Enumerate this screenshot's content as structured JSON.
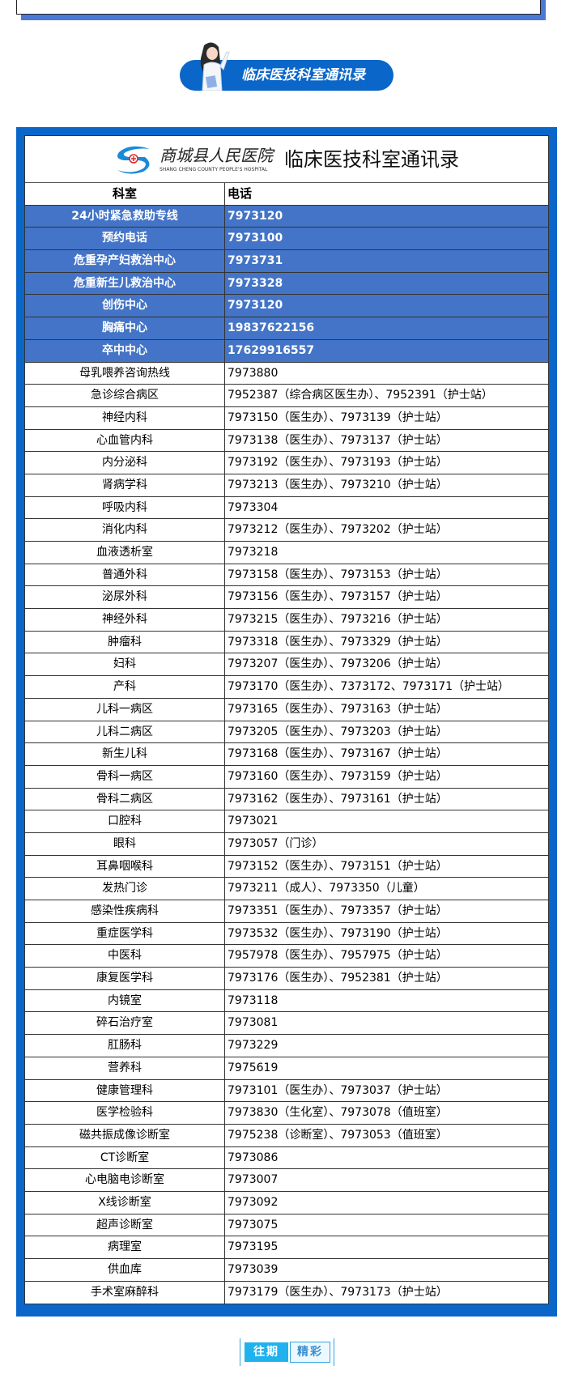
{
  "badge": {
    "title": "临床医技科室通讯录"
  },
  "table": {
    "logo_cn": "商城县人民医院",
    "logo_en": "SHANG CHENG COUNTY PEOPLE'S HOSPITAL",
    "title": "临床医技科室通讯录",
    "headers": [
      "科室",
      "电话"
    ],
    "highlight_color": "#4374c7",
    "highlight_rows": [
      [
        "24小时紧急救助专线",
        "7973120"
      ],
      [
        "预约电话",
        "7973100"
      ],
      [
        "危重孕产妇救治中心",
        "7973731"
      ],
      [
        "危重新生儿救治中心",
        "7973328"
      ],
      [
        "创伤中心",
        "7973120"
      ],
      [
        "胸痛中心",
        "19837622156"
      ],
      [
        "卒中中心",
        "17629916557"
      ]
    ],
    "rows": [
      [
        "母乳喂养咨询热线",
        "7973880"
      ],
      [
        "急诊综合病区",
        "7952387（综合病区医生办）、7952391（护士站）"
      ],
      [
        "神经内科",
        "7973150（医生办）、7973139（护士站）"
      ],
      [
        "心血管内科",
        "7973138（医生办）、7973137（护士站）"
      ],
      [
        "内分泌科",
        "7973192（医生办）、7973193（护士站）"
      ],
      [
        "肾病学科",
        "7973213（医生办）、7973210（护士站）"
      ],
      [
        "呼吸内科",
        "7973304"
      ],
      [
        "消化内科",
        "7973212（医生办）、7973202（护士站）"
      ],
      [
        "血液透析室",
        "7973218"
      ],
      [
        "普通外科",
        "7973158（医生办）、7973153（护士站）"
      ],
      [
        "泌尿外科",
        "7973156（医生办）、7973157（护士站）"
      ],
      [
        "神经外科",
        "7973215（医生办）、7973216（护士站）"
      ],
      [
        "肿瘤科",
        "7973318（医生办）、7973329（护士站）"
      ],
      [
        "妇科",
        "7973207（医生办）、7973206（护士站）"
      ],
      [
        "产科",
        "7973170（医生办）、7373172、7973171（护士站）"
      ],
      [
        "儿科一病区",
        "7973165（医生办）、7973163（护士站）"
      ],
      [
        "儿科二病区",
        "7973205（医生办）、7973203（护士站）"
      ],
      [
        "新生儿科",
        "7973168（医生办）、7973167（护士站）"
      ],
      [
        "骨科一病区",
        "7973160（医生办）、7973159（护士站）"
      ],
      [
        "骨科二病区",
        "7973162（医生办）、7973161（护士站）"
      ],
      [
        "口腔科",
        "7973021"
      ],
      [
        "眼科",
        "7973057（门诊）"
      ],
      [
        "耳鼻咽喉科",
        "7973152（医生办）、7973151（护士站）"
      ],
      [
        "发热门诊",
        "7973211（成人）、7973350（儿童）"
      ],
      [
        "感染性疾病科",
        "7973351（医生办）、7973357（护士站）"
      ],
      [
        "重症医学科",
        "7973532（医生办）、7973190（护士站）"
      ],
      [
        "中医科",
        "7957978（医生办）、7957975（护士站）"
      ],
      [
        "康复医学科",
        "7973176（医生办）、7952381（护士站）"
      ],
      [
        "内镜室",
        "7973118"
      ],
      [
        "碎石治疗室",
        "7973081"
      ],
      [
        "肛肠科",
        "7973229"
      ],
      [
        "营养科",
        "7975619"
      ],
      [
        "健康管理科",
        "7973101（医生办）、7973037（护士站）"
      ],
      [
        "医学检验科",
        "7973830（生化室）、7973078（值班室）"
      ],
      [
        "磁共振成像诊断室",
        "7975238（诊断室）、7973053（值班室）"
      ],
      [
        "CT诊断室",
        "7973086"
      ],
      [
        "心电脑电诊断室",
        "7973007"
      ],
      [
        "X线诊断室",
        "7973092"
      ],
      [
        "超声诊断室",
        "7973075"
      ],
      [
        "病理室",
        "7973195"
      ],
      [
        "供血库",
        "7973039"
      ],
      [
        "手术室麻醉科",
        "7973179（医生办）、7973173（护士站）"
      ]
    ]
  },
  "footer": {
    "left": "往期",
    "right": "精彩"
  }
}
